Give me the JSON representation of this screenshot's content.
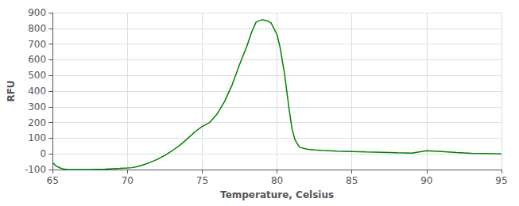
{
  "chart_data": {
    "type": "line",
    "xlabel": "Temperature, Celsius",
    "ylabel": "RFU",
    "color": "#008000",
    "xlim": [
      65,
      95
    ],
    "ylim": [
      -100,
      900
    ],
    "xticks": [
      65,
      70,
      75,
      80,
      85,
      90,
      95
    ],
    "yticks": [
      -100,
      0,
      100,
      200,
      300,
      400,
      500,
      600,
      700,
      800,
      900
    ],
    "grid": true,
    "x": [
      65.0,
      65.2,
      65.5,
      65.8,
      66.0,
      66.5,
      67.0,
      67.5,
      68.0,
      68.5,
      69.0,
      69.5,
      70.0,
      70.3,
      70.6,
      71.0,
      71.5,
      72.0,
      72.5,
      73.0,
      73.5,
      74.0,
      74.5,
      75.0,
      75.2,
      75.5,
      76.0,
      76.5,
      77.0,
      77.5,
      78.0,
      78.3,
      78.6,
      79.0,
      79.3,
      79.6,
      80.0,
      80.2,
      80.5,
      80.8,
      81.0,
      81.2,
      81.5,
      82.0,
      82.5,
      83.0,
      84.0,
      85.0,
      86.0,
      87.0,
      88.0,
      89.0,
      90.0,
      91.0,
      92.0,
      93.0,
      94.0,
      95.0
    ],
    "values": [
      -55,
      -75,
      -90,
      -98,
      -100,
      -100,
      -100,
      -100,
      -99,
      -98,
      -95,
      -93,
      -90,
      -88,
      -82,
      -72,
      -55,
      -35,
      -10,
      20,
      55,
      95,
      140,
      175,
      185,
      200,
      255,
      335,
      440,
      570,
      690,
      775,
      840,
      855,
      850,
      835,
      760,
      680,
      510,
      290,
      160,
      90,
      42,
      30,
      25,
      22,
      18,
      15,
      12,
      10,
      7,
      5,
      20,
      15,
      8,
      4,
      2,
      0
    ]
  }
}
